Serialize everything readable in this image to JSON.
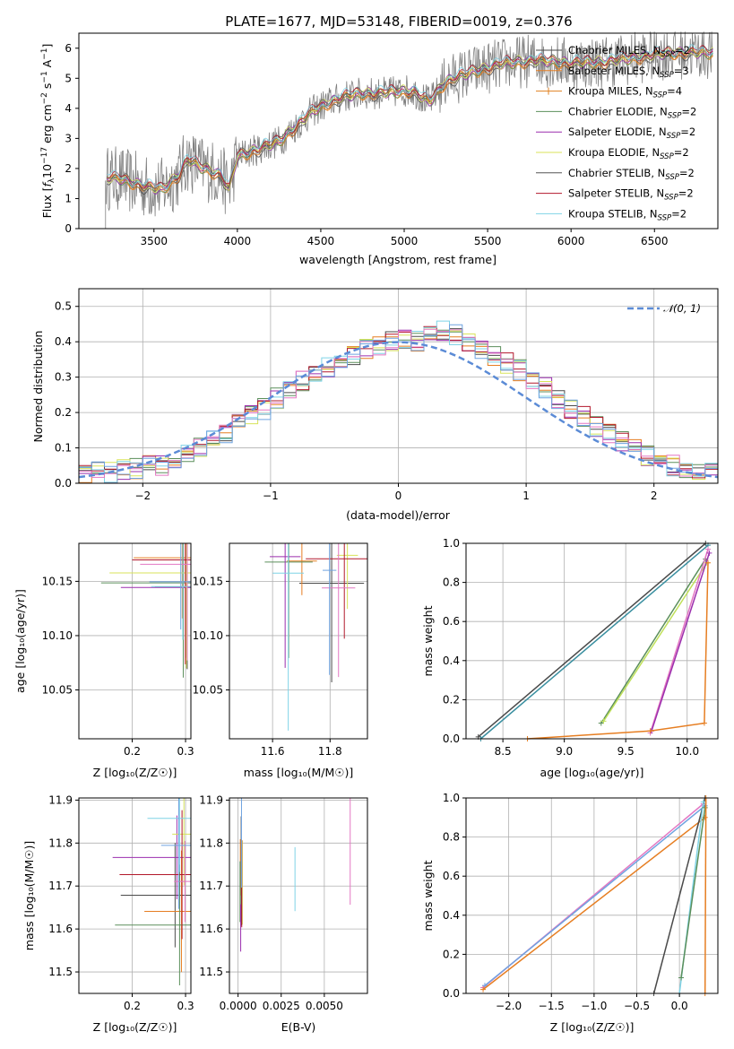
{
  "title": "PLATE=1677, MJD=53148, FIBERID=0019, z=0.376",
  "colors": {
    "Chabrier MILES": "#4a4a4a",
    "Salpeter MILES": "#e67e22",
    "Kroupa MILES": "#e08020",
    "Chabrier ELODIE": "#5b8f5b",
    "Salpeter ELODIE": "#9b2fae",
    "Kroupa ELODIE": "#d8e35a",
    "Chabrier STELIB": "#555555",
    "Salpeter STELIB": "#b2182b",
    "Kroupa STELIB": "#7fd3e6",
    "data": "#808080",
    "gaussian": "#5b8bd6",
    "extra_pink": "#e377c2",
    "extra_blue": "#6fa3e0",
    "extra_lime": "#bfe05a",
    "extra_teal": "#3a8fa0"
  },
  "chart_data": [
    {
      "type": "line",
      "title": "PLATE=1677, MJD=53148, FIBERID=0019, z=0.376",
      "xlabel": "wavelength [Angstrom, rest frame]",
      "ylabel": "Flux [fλ10⁻¹⁷ erg cm⁻² s⁻¹ A⁻¹]",
      "xlim": [
        3050,
        6880
      ],
      "ylim": [
        0,
        6.5
      ],
      "xticks": [
        "3500",
        "4000",
        "4500",
        "5000",
        "5500",
        "6000",
        "6500"
      ],
      "yticks": [
        "0",
        "1",
        "2",
        "3",
        "4",
        "5",
        "6"
      ],
      "grid": false,
      "legend_position": "top-right",
      "legend": [
        {
          "label": "Chabrier MILES, N",
          "sub": "SSP",
          "tail": "=2"
        },
        {
          "label": "Salpeter MILES, N",
          "sub": "SSP",
          "tail": "=3"
        },
        {
          "label": "Kroupa MILES, N",
          "sub": "SSP",
          "tail": "=4"
        },
        {
          "label": "Chabrier ELODIE, N",
          "sub": "SSP",
          "tail": "=2"
        },
        {
          "label": "Salpeter ELODIE, N",
          "sub": "SSP",
          "tail": "=2"
        },
        {
          "label": "Kroupa ELODIE, N",
          "sub": "SSP",
          "tail": "=2"
        },
        {
          "label": "Chabrier STELIB, N",
          "sub": "SSP",
          "tail": "=2"
        },
        {
          "label": "Salpeter STELIB, N",
          "sub": "SSP",
          "tail": "=2"
        },
        {
          "label": "Kroupa STELIB, N",
          "sub": "SSP",
          "tail": "=2"
        }
      ],
      "model_continuum": [
        [
          3210,
          1.7
        ],
        [
          3300,
          1.65
        ],
        [
          3450,
          1.4
        ],
        [
          3550,
          1.3
        ],
        [
          3650,
          1.8
        ],
        [
          3700,
          2.3
        ],
        [
          3800,
          2.0
        ],
        [
          3900,
          1.8
        ],
        [
          3950,
          1.3
        ],
        [
          4000,
          2.4
        ],
        [
          4100,
          2.6
        ],
        [
          4250,
          2.9
        ],
        [
          4350,
          3.4
        ],
        [
          4450,
          3.9
        ],
        [
          4550,
          4.2
        ],
        [
          4650,
          4.4
        ],
        [
          4750,
          4.5
        ],
        [
          4850,
          4.5
        ],
        [
          4950,
          4.55
        ],
        [
          5050,
          4.6
        ],
        [
          5150,
          4.2
        ],
        [
          5250,
          4.9
        ],
        [
          5400,
          5.2
        ],
        [
          5600,
          5.5
        ],
        [
          5800,
          5.6
        ],
        [
          6000,
          5.5
        ],
        [
          6200,
          5.55
        ],
        [
          6400,
          5.7
        ],
        [
          6600,
          5.85
        ]
      ]
    },
    {
      "type": "bar",
      "xlabel": "(data-model)/error",
      "ylabel": "Normed distribution",
      "xlim": [
        -2.5,
        2.5
      ],
      "ylim": [
        0,
        0.55
      ],
      "xticks": [
        "−2",
        "−1",
        "0",
        "1",
        "2"
      ],
      "yticks": [
        "0.0",
        "0.1",
        "0.2",
        "0.3",
        "0.4",
        "0.5"
      ],
      "grid": true,
      "legend": [
        {
          "label": "𝒩(0, 1)"
        }
      ],
      "bin_width": 0.1,
      "series_envelope": [
        0.02,
        0.03,
        0.03,
        0.04,
        0.04,
        0.05,
        0.05,
        0.07,
        0.09,
        0.1,
        0.12,
        0.14,
        0.17,
        0.19,
        0.21,
        0.24,
        0.26,
        0.29,
        0.31,
        0.33,
        0.35,
        0.36,
        0.38,
        0.39,
        0.4,
        0.41,
        0.4,
        0.42,
        0.43,
        0.42,
        0.4,
        0.38,
        0.36,
        0.34,
        0.32,
        0.29,
        0.27,
        0.24,
        0.21,
        0.19,
        0.16,
        0.14,
        0.12,
        0.1,
        0.08,
        0.07,
        0.05,
        0.04,
        0.03,
        0.03
      ]
    },
    {
      "type": "scatter",
      "xlabel": "Z [log₁₀(Z/Z☉)]",
      "ylabel": "age [log₁₀(age/yr)]",
      "xlim": [
        0.1,
        0.31
      ],
      "ylim": [
        10.005,
        10.185
      ],
      "xticks": [
        "0.2",
        "0.3"
      ],
      "yticks": [
        "10.05",
        "10.10",
        "10.15"
      ],
      "grid": true
    },
    {
      "type": "scatter",
      "xlabel": "mass [log₁₀(M/M☉)]",
      "ylabel": "",
      "xlim": [
        11.45,
        11.93
      ],
      "ylim": [
        10.005,
        10.185
      ],
      "xticks": [
        "11.6",
        "11.8"
      ],
      "yticks": [
        "10.05",
        "10.10",
        "10.15"
      ],
      "grid": true
    },
    {
      "type": "line",
      "xlabel": "age [log₁₀(age/yr)]",
      "ylabel": "mass weight",
      "xlim": [
        8.2,
        10.25
      ],
      "ylim": [
        0,
        1
      ],
      "xticks": [
        "8.5",
        "9.0",
        "9.5",
        "10.0"
      ],
      "yticks": [
        "0.0",
        "0.2",
        "0.4",
        "0.6",
        "0.8",
        "1.0"
      ],
      "grid": true
    },
    {
      "type": "scatter",
      "xlabel": "Z [log₁₀(Z/Z☉)]",
      "ylabel": "mass [log₁₀(M/M☉)]",
      "xlim": [
        0.1,
        0.31
      ],
      "ylim": [
        11.45,
        11.905
      ],
      "xticks": [
        "0.2",
        "0.3"
      ],
      "yticks": [
        "11.5",
        "11.6",
        "11.7",
        "11.8",
        "11.9"
      ],
      "grid": true
    },
    {
      "type": "scatter",
      "xlabel": "E(B-V)",
      "ylabel": "",
      "xlim": [
        -0.0005,
        0.0075
      ],
      "ylim": [
        11.45,
        11.905
      ],
      "xticks": [
        "0.0000",
        "0.0025",
        "0.0050"
      ],
      "yticks": [
        "11.5",
        "11.6",
        "11.7",
        "11.8",
        "11.9"
      ],
      "grid": true
    },
    {
      "type": "line",
      "xlabel": "Z [log₁₀(Z/Z☉)]",
      "ylabel": "mass weight",
      "xlim": [
        -2.5,
        0.45
      ],
      "ylim": [
        0,
        1
      ],
      "xticks": [
        "−2.0",
        "−1.5",
        "−1.0",
        "−0.5",
        "0.0"
      ],
      "yticks": [
        "0.0",
        "0.2",
        "0.4",
        "0.6",
        "0.8",
        "1.0"
      ],
      "grid": true
    }
  ]
}
